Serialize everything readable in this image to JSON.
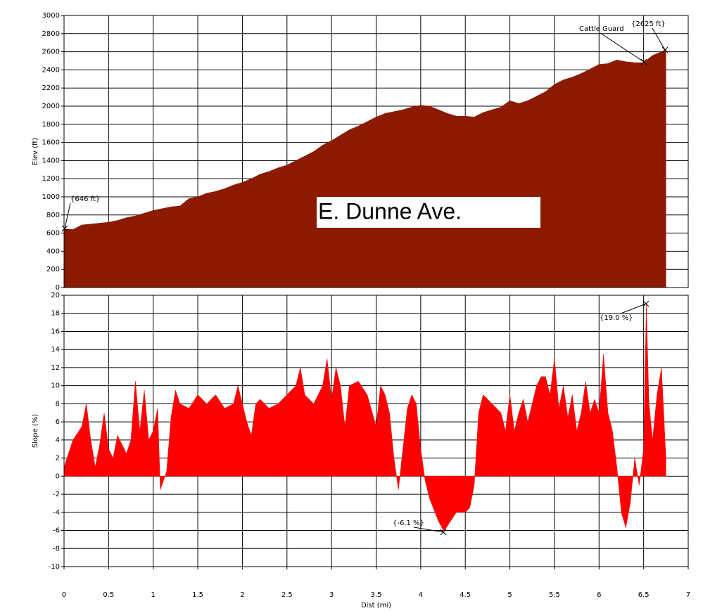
{
  "chart_data": [
    {
      "type": "area",
      "ylabel": "Elev (ft)",
      "title": "E. Dunne Ave.",
      "color": "#8b1a00",
      "grid": true,
      "xlim": [
        0,
        7
      ],
      "ylim": [
        0,
        3000
      ],
      "yticks": [
        0,
        200,
        400,
        600,
        800,
        1000,
        1200,
        1400,
        1600,
        1800,
        2000,
        2200,
        2400,
        2600,
        2800,
        3000
      ],
      "annotations": [
        "{646 ft}",
        "Cattle Guard",
        "{2625 ft}"
      ],
      "x": [
        0,
        0.1,
        0.2,
        0.3,
        0.4,
        0.5,
        0.6,
        0.7,
        0.8,
        0.9,
        1.0,
        1.1,
        1.2,
        1.3,
        1.4,
        1.5,
        1.6,
        1.7,
        1.8,
        1.9,
        2.0,
        2.1,
        2.2,
        2.3,
        2.4,
        2.5,
        2.6,
        2.7,
        2.8,
        2.9,
        3.0,
        3.1,
        3.2,
        3.3,
        3.4,
        3.5,
        3.6,
        3.7,
        3.8,
        3.9,
        4.0,
        4.1,
        4.2,
        4.3,
        4.4,
        4.5,
        4.6,
        4.7,
        4.8,
        4.9,
        5.0,
        5.1,
        5.2,
        5.3,
        5.4,
        5.5,
        5.6,
        5.7,
        5.8,
        5.9,
        6.0,
        6.1,
        6.2,
        6.3,
        6.4,
        6.5,
        6.6,
        6.7,
        6.75
      ],
      "values": [
        646,
        640,
        690,
        700,
        710,
        720,
        740,
        770,
        790,
        820,
        850,
        870,
        890,
        900,
        980,
        1000,
        1040,
        1060,
        1090,
        1130,
        1160,
        1200,
        1250,
        1280,
        1320,
        1350,
        1400,
        1450,
        1500,
        1570,
        1620,
        1680,
        1740,
        1780,
        1830,
        1880,
        1920,
        1940,
        1960,
        1990,
        2010,
        2000,
        1960,
        1920,
        1890,
        1890,
        1880,
        1930,
        1960,
        1990,
        2060,
        2030,
        2060,
        2110,
        2160,
        2240,
        2290,
        2320,
        2360,
        2410,
        2460,
        2470,
        2510,
        2490,
        2480,
        2480,
        2560,
        2600,
        2625
      ]
    },
    {
      "type": "area",
      "ylabel": "Slope (%)",
      "xlabel": "Dist (mi)",
      "color": "#ff0000",
      "grid": true,
      "xlim": [
        0,
        7
      ],
      "ylim": [
        -10,
        20
      ],
      "yticks": [
        -10,
        -8,
        -6,
        -4,
        -2,
        0,
        2,
        4,
        6,
        8,
        10,
        12,
        14,
        16,
        18,
        20
      ],
      "xticks": [
        0,
        0.5,
        1,
        1.5,
        2,
        2.5,
        3,
        3.5,
        4,
        4.5,
        5,
        5.5,
        6,
        6.5,
        7
      ],
      "annotations": [
        "{19.0 %}",
        "{-6.1 %}"
      ],
      "x": [
        0,
        0.1,
        0.2,
        0.25,
        0.3,
        0.35,
        0.4,
        0.45,
        0.5,
        0.55,
        0.6,
        0.7,
        0.75,
        0.8,
        0.85,
        0.9,
        0.95,
        1.0,
        1.05,
        1.08,
        1.15,
        1.2,
        1.25,
        1.3,
        1.4,
        1.5,
        1.6,
        1.7,
        1.8,
        1.9,
        1.95,
        2.0,
        2.05,
        2.1,
        2.15,
        2.2,
        2.3,
        2.4,
        2.5,
        2.6,
        2.65,
        2.7,
        2.8,
        2.9,
        2.95,
        3.0,
        3.05,
        3.1,
        3.15,
        3.2,
        3.3,
        3.4,
        3.5,
        3.55,
        3.6,
        3.65,
        3.7,
        3.75,
        3.8,
        3.85,
        3.9,
        3.95,
        4.0,
        4.05,
        4.1,
        4.2,
        4.26,
        4.3,
        4.4,
        4.5,
        4.55,
        4.6,
        4.65,
        4.7,
        4.8,
        4.9,
        4.95,
        5.0,
        5.05,
        5.1,
        5.15,
        5.2,
        5.25,
        5.3,
        5.35,
        5.4,
        5.45,
        5.5,
        5.55,
        5.6,
        5.65,
        5.7,
        5.75,
        5.8,
        5.85,
        5.9,
        5.95,
        6.0,
        6.05,
        6.1,
        6.15,
        6.2,
        6.25,
        6.3,
        6.35,
        6.4,
        6.45,
        6.5,
        6.53,
        6.56,
        6.6,
        6.65,
        6.7,
        6.75
      ],
      "values": [
        1,
        4,
        5.5,
        8,
        4,
        1,
        3.5,
        7,
        3,
        2,
        4.5,
        2.5,
        4,
        10.5,
        5,
        9.5,
        4,
        5,
        7.5,
        -1.5,
        0.5,
        6.5,
        9.5,
        8,
        7.5,
        9,
        8,
        9,
        7.5,
        8,
        10,
        8,
        6,
        4.5,
        8,
        8.5,
        7.5,
        8,
        9,
        10,
        12,
        9,
        8,
        10,
        13,
        8.5,
        12,
        10,
        5.5,
        10,
        10.5,
        9,
        5.5,
        10,
        9,
        7,
        2,
        -1.5,
        3,
        7.5,
        9,
        8,
        3,
        -0.5,
        -2.5,
        -5,
        -6.1,
        -5.5,
        -4,
        -4,
        -3.5,
        -1,
        7,
        9,
        8,
        7,
        5,
        9,
        5,
        7,
        8.5,
        6,
        8,
        10,
        11,
        11,
        9,
        13,
        7.5,
        10,
        6.5,
        9,
        5,
        7,
        10.5,
        7,
        8.5,
        7,
        13.5,
        7,
        5,
        1,
        -4,
        -5.7,
        -3,
        2,
        -1,
        3,
        19,
        8,
        4,
        9,
        12,
        2
      ]
    }
  ]
}
